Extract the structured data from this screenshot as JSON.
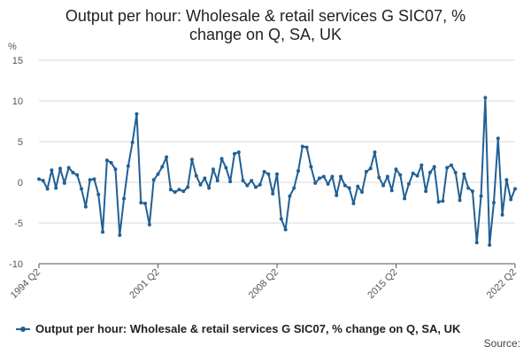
{
  "header": {
    "title_line1": "Output per hour: Wholesale & retail services G SIC07, %",
    "title_line2": "change on Q, SA, UK"
  },
  "footer": {
    "source": "Source:"
  },
  "chart_data": {
    "type": "line",
    "title": "Output per hour: Wholesale & retail services G SIC07, % change on Q, SA, UK",
    "ylabel": "%",
    "xlabel": "",
    "ylim": [
      -10,
      15
    ],
    "yticks": [
      -10,
      -5,
      0,
      5,
      10,
      15
    ],
    "xtick_labels": [
      "1994 Q2",
      "2001 Q2",
      "2008 Q2",
      "2015 Q2",
      "2022 Q2"
    ],
    "xtick_index": [
      0,
      28,
      56,
      84,
      112
    ],
    "grid": true,
    "legend_position": "bottom",
    "color": "#206095",
    "series": [
      {
        "name": "Output per hour: Wholesale & retail services G SIC07, % change on Q, SA, UK",
        "start": "1994 Q2",
        "values": [
          0.4,
          0.2,
          -0.8,
          1.5,
          -0.7,
          1.7,
          -0.1,
          1.8,
          1.2,
          0.9,
          -0.8,
          -3.0,
          0.3,
          0.4,
          -1.5,
          -6.1,
          2.7,
          2.4,
          1.6,
          -6.5,
          -2.0,
          2.0,
          4.9,
          8.4,
          -2.5,
          -2.6,
          -5.2,
          0.3,
          1.0,
          1.9,
          3.1,
          -0.9,
          -1.2,
          -0.9,
          -1.1,
          -0.6,
          2.8,
          0.8,
          -0.3,
          0.5,
          -0.7,
          1.6,
          0.2,
          2.9,
          1.8,
          0.1,
          3.5,
          3.7,
          0.2,
          -0.4,
          0.2,
          -0.6,
          -0.3,
          1.3,
          1.0,
          -1.4,
          1.0,
          -4.5,
          -5.8,
          -1.7,
          -0.7,
          1.4,
          4.4,
          4.3,
          1.9,
          -0.1,
          0.5,
          0.7,
          -0.2,
          0.7,
          -1.6,
          0.7,
          -0.4,
          -0.7,
          -2.6,
          -0.5,
          -1.2,
          1.3,
          1.7,
          3.7,
          0.6,
          -0.4,
          0.7,
          -1.0,
          1.6,
          0.9,
          -2.0,
          -0.2,
          1.1,
          0.8,
          2.1,
          -1.1,
          1.2,
          1.9,
          -2.4,
          -2.3,
          1.8,
          2.1,
          1.2,
          -2.2,
          1.0,
          -0.7,
          -1.1,
          -7.4,
          -1.7,
          10.4,
          -7.7,
          -2.5,
          5.4,
          -4.0,
          0.3,
          -2.1,
          -0.8
        ]
      }
    ]
  }
}
